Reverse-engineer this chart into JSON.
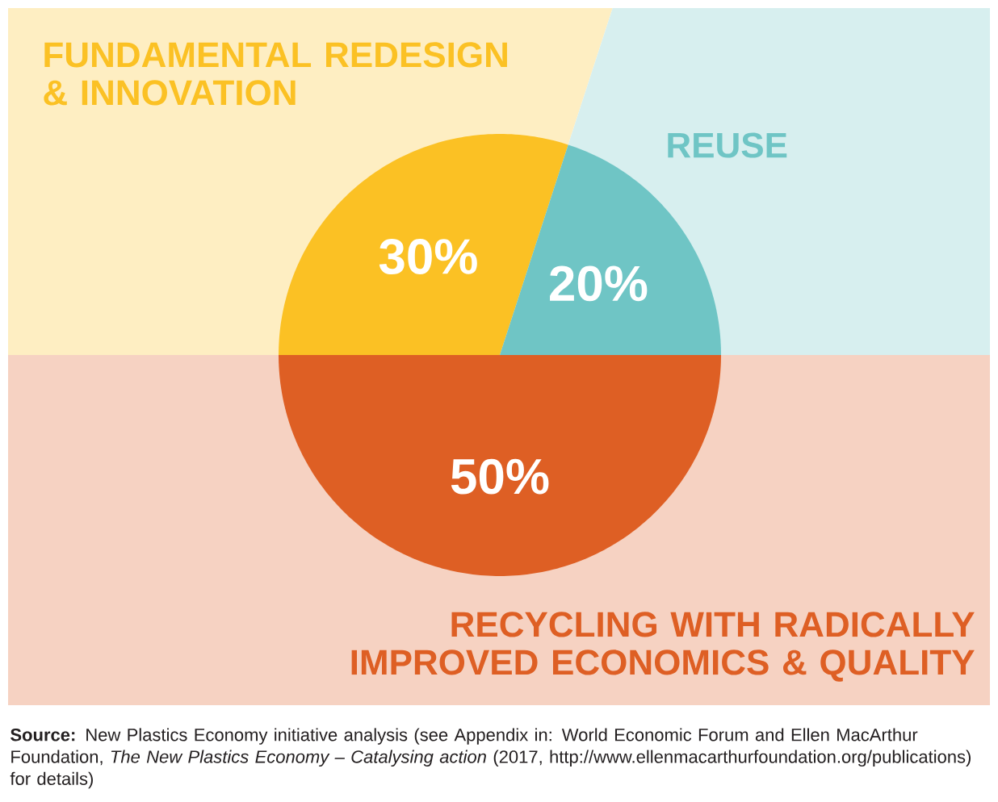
{
  "chart_data": {
    "type": "pie",
    "categories": [
      "FUNDAMENTAL REDESIGN & INNOVATION",
      "REUSE",
      "RECYCLING WITH RADICALLY IMPROVED ECONOMICS & QUALITY"
    ],
    "values": [
      30,
      20,
      50
    ],
    "colors": [
      "#fbc124",
      "#6fc5c5",
      "#de5f24"
    ],
    "value_labels": [
      "30%",
      "20%",
      "50%"
    ],
    "annotations": [
      "**Source:** New Plastics Economy initiative analysis (see Appendix in: World Economic Forum and Ellen MacArthur Foundation, *The New Plastics Economy – Catalysing action* (2017, http://www.ellenmacarthurfoundation.org/publications) for details)"
    ]
  }
}
